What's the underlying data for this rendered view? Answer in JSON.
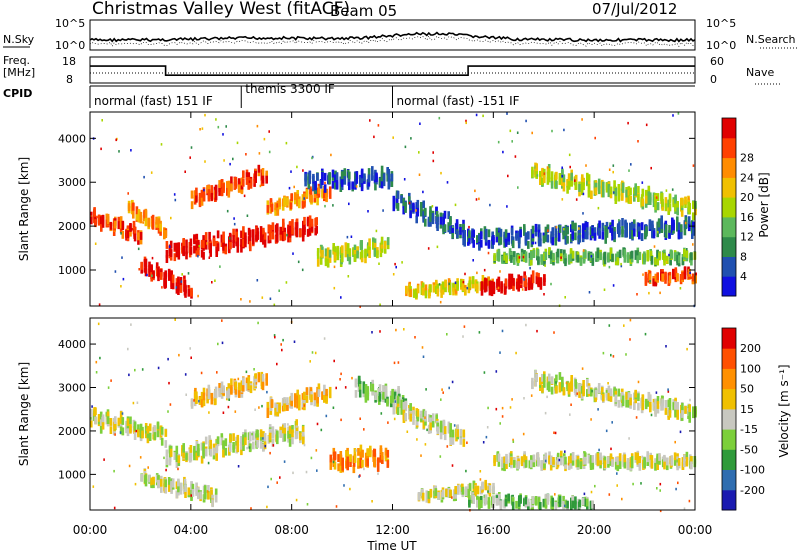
{
  "header": {
    "station": "Christmas Valley West (fitACF)",
    "beam": "Beam 05",
    "date": "07/Jul/2012"
  },
  "noise_panel": {
    "left_label": "N.Sky",
    "right_label": "N.Search",
    "tick_top": "10^5",
    "tick_bottom": "10^0"
  },
  "freq_panel": {
    "left_label_1": "Freq.",
    "left_label_2": "[MHz]",
    "left_tick_top": "18",
    "left_tick_bottom": "8",
    "right_label": "Nave",
    "right_tick_top": "60",
    "right_tick_bottom": "0"
  },
  "cpid_panel": {
    "label": "CPID",
    "modes": [
      {
        "text": "normal (fast) 151 IF",
        "start_hour": 0,
        "end_hour": 6
      },
      {
        "text": "themis 3300 IF",
        "start_hour": 6,
        "end_hour": 12
      },
      {
        "text": "normal (fast) -151 IF",
        "start_hour": 12,
        "end_hour": 24
      }
    ]
  },
  "power_panel": {
    "ylabel": "Slant Range [km]",
    "yticks": [
      "1000",
      "2000",
      "3000",
      "4000"
    ],
    "colorbar_label": "Power [dB]",
    "colorbar_ticks": [
      "4",
      "8",
      "12",
      "16",
      "20",
      "24",
      "28"
    ],
    "colors": [
      "#1010e0",
      "#2050b0",
      "#2e8a4a",
      "#5cb85c",
      "#a8d600",
      "#f0c000",
      "#ff8c00",
      "#ff4000",
      "#e00000"
    ]
  },
  "velocity_panel": {
    "ylabel": "Slant Range [km]",
    "yticks": [
      "1000",
      "2000",
      "3000",
      "4000"
    ],
    "colorbar_label": "Velocity [m s⁻¹]",
    "colorbar_ticks": [
      "200",
      "100",
      "50",
      "15",
      "-15",
      "-50",
      "-100",
      "-200"
    ],
    "colors": [
      "#1a1ab0",
      "#2f6db0",
      "#2f9a3a",
      "#7ccf3a",
      "#c8c8c0",
      "#f0c000",
      "#ff9000",
      "#ff5000",
      "#e00000"
    ]
  },
  "x_axis": {
    "label": "Time UT",
    "ticks": [
      "00:00",
      "04:00",
      "08:00",
      "12:00",
      "16:00",
      "20:00",
      "00:00"
    ]
  },
  "chart_data": {
    "type": "heatmap",
    "title": "Christmas Valley West (fitACF) Beam 05 07/Jul/2012",
    "xlabel": "Time UT",
    "ylabel": "Slant Range [km]",
    "xlim_hours": [
      0,
      24
    ],
    "ylim_km": [
      180,
      4600
    ],
    "freq_mhz_segments": [
      {
        "start_hour": 0,
        "end_hour": 3,
        "value": 14.5
      },
      {
        "start_hour": 3,
        "end_hour": 15,
        "value": 11
      },
      {
        "start_hour": 15,
        "end_hour": 24,
        "value": 14.5
      }
    ],
    "power_bands": [
      {
        "t0": 0.0,
        "t1": 2.0,
        "r0": 2200,
        "r1": 1800,
        "w": 250,
        "level": 7
      },
      {
        "t0": 1.5,
        "t1": 3.0,
        "r0": 2400,
        "r1": 1900,
        "w": 200,
        "level": 6
      },
      {
        "t0": 2.0,
        "t1": 4.0,
        "r0": 1100,
        "r1": 500,
        "w": 250,
        "level": 8
      },
      {
        "t0": 3.0,
        "t1": 9.0,
        "r0": 1400,
        "r1": 2000,
        "w": 350,
        "level": 8
      },
      {
        "t0": 4.0,
        "t1": 7.0,
        "r0": 2600,
        "r1": 3200,
        "w": 250,
        "level": 7
      },
      {
        "t0": 7.0,
        "t1": 9.5,
        "r0": 2400,
        "r1": 2800,
        "w": 200,
        "level": 6
      },
      {
        "t0": 9.0,
        "t1": 11.8,
        "r0": 1300,
        "r1": 1500,
        "w": 300,
        "level": 4
      },
      {
        "t0": 8.5,
        "t1": 12.0,
        "r0": 3000,
        "r1": 3100,
        "w": 300,
        "level": 1
      },
      {
        "t0": 12.0,
        "t1": 15.0,
        "r0": 2600,
        "r1": 1800,
        "w": 350,
        "level": 1
      },
      {
        "t0": 12.5,
        "t1": 16.0,
        "r0": 500,
        "r1": 700,
        "w": 150,
        "level": 5
      },
      {
        "t0": 15.5,
        "t1": 18.0,
        "r0": 600,
        "r1": 800,
        "w": 200,
        "level": 8
      },
      {
        "t0": 17.5,
        "t1": 24.0,
        "r0": 3200,
        "r1": 2400,
        "w": 300,
        "level": 4
      },
      {
        "t0": 16.0,
        "t1": 24.0,
        "r0": 1300,
        "r1": 1300,
        "w": 150,
        "level": 3
      },
      {
        "t0": 15.0,
        "t1": 24.0,
        "r0": 1700,
        "r1": 2000,
        "w": 300,
        "level": 1
      },
      {
        "t0": 22.0,
        "t1": 24.0,
        "r0": 800,
        "r1": 900,
        "w": 150,
        "level": 7
      }
    ],
    "velocity_bands": [
      {
        "t0": 0.0,
        "t1": 3.0,
        "r0": 2300,
        "r1": 1900,
        "w": 350,
        "level": 4
      },
      {
        "t0": 2.0,
        "t1": 5.0,
        "r0": 900,
        "r1": 500,
        "w": 250,
        "level": 4
      },
      {
        "t0": 3.0,
        "t1": 8.5,
        "r0": 1400,
        "r1": 2000,
        "w": 350,
        "level": 4
      },
      {
        "t0": 4.0,
        "t1": 7.0,
        "r0": 2700,
        "r1": 3200,
        "w": 250,
        "level": 5
      },
      {
        "t0": 7.0,
        "t1": 9.5,
        "r0": 2500,
        "r1": 2900,
        "w": 250,
        "level": 5
      },
      {
        "t0": 9.5,
        "t1": 11.8,
        "r0": 1300,
        "r1": 1400,
        "w": 380,
        "level": 6
      },
      {
        "t0": 10.5,
        "t1": 12.5,
        "r0": 3000,
        "r1": 2700,
        "w": 300,
        "level": 3
      },
      {
        "t0": 12.0,
        "t1": 14.8,
        "r0": 2600,
        "r1": 1800,
        "w": 350,
        "level": 4
      },
      {
        "t0": 13.0,
        "t1": 16.0,
        "r0": 500,
        "r1": 700,
        "w": 150,
        "level": 4
      },
      {
        "t0": 17.5,
        "t1": 24.0,
        "r0": 3200,
        "r1": 2400,
        "w": 300,
        "level": 4
      },
      {
        "t0": 16.0,
        "t1": 24.0,
        "r0": 1300,
        "r1": 1300,
        "w": 200,
        "level": 4
      },
      {
        "t0": 15.0,
        "t1": 20.0,
        "r0": 400,
        "r1": 300,
        "w": 150,
        "level": 3
      }
    ]
  }
}
